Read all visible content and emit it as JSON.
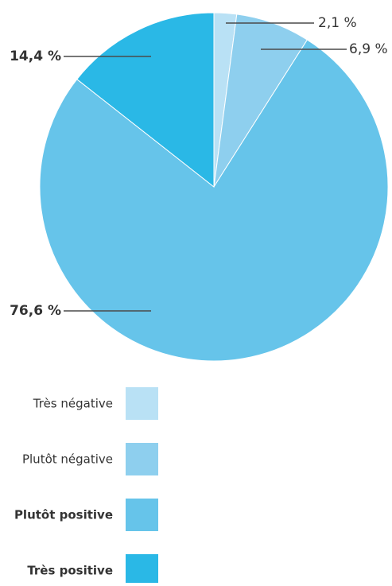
{
  "chart_data": {
    "type": "pie",
    "title": "",
    "start_angle_deg": 0,
    "direction": "clockwise",
    "decimal_separator": ",",
    "legend_position": "bottom-left",
    "series": [
      {
        "name": "Très négative",
        "value": 2.1,
        "label": "2,1 %",
        "color": "#b9e1f5",
        "bold": false
      },
      {
        "name": "Plutôt négative",
        "value": 6.9,
        "label": "6,9 %",
        "color": "#8ecfee",
        "bold": false
      },
      {
        "name": "Plutôt positive",
        "value": 76.6,
        "label": "76,6 %",
        "color": "#66c4ea",
        "bold": true
      },
      {
        "name": "Très positive",
        "value": 14.4,
        "label": "14,4 %",
        "color": "#2ab8e6",
        "bold": true
      }
    ]
  }
}
